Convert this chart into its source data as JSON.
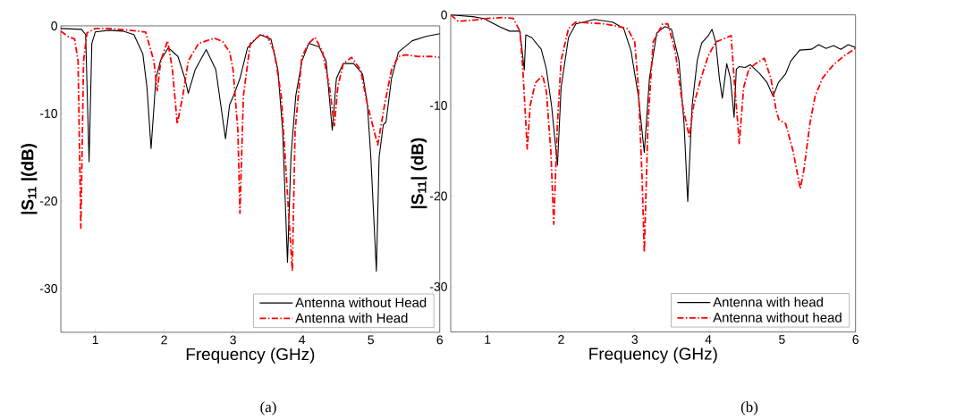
{
  "chart_data": [
    {
      "type": "line",
      "xlabel": "Frequency (GHz)",
      "ylabel": "|S$_{11}$ |(dB)",
      "annotations": [
        "(a)"
      ],
      "xlim": [
        0.5,
        6
      ],
      "ylim": [
        -35,
        0
      ],
      "xticks": [
        1,
        2,
        3,
        4,
        5,
        6
      ],
      "yticks": [
        0,
        -10,
        -20,
        -30
      ],
      "legend": "bottom right",
      "series": [
        {
          "name": "Antenna without Head",
          "color": "#000000",
          "line_style": "solid",
          "x": [
            0.5,
            0.8,
            0.86,
            0.91,
            0.95,
            1.0,
            1.2,
            1.4,
            1.56,
            1.69,
            1.75,
            1.81,
            1.88,
            1.95,
            2.06,
            2.2,
            2.3,
            2.35,
            2.45,
            2.61,
            2.75,
            2.89,
            2.95,
            3.02,
            3.1,
            3.21,
            3.39,
            3.55,
            3.65,
            3.72,
            3.79,
            3.84,
            3.91,
            4.0,
            4.1,
            4.25,
            4.35,
            4.44,
            4.5,
            4.6,
            4.75,
            4.88,
            4.95,
            5.0,
            5.08,
            5.12,
            5.18,
            5.22,
            5.3,
            5.4,
            5.6,
            5.8,
            6.0
          ],
          "values": [
            -0.3,
            -0.4,
            -1,
            -15.5,
            -2,
            -0.7,
            -0.5,
            -0.6,
            -1,
            -3.2,
            -7,
            -14,
            -6,
            -3.9,
            -2.5,
            -3.5,
            -6,
            -7.7,
            -5,
            -2.7,
            -5,
            -12.9,
            -9,
            -7.7,
            -6,
            -2.5,
            -1,
            -1.5,
            -5,
            -12,
            -27,
            -15,
            -8,
            -4,
            -2,
            -2.4,
            -4,
            -11.9,
            -6,
            -4.3,
            -4.3,
            -5.5,
            -9,
            -15,
            -28,
            -15,
            -11.3,
            -11,
            -6,
            -3,
            -1.7,
            -1.2,
            -0.9
          ]
        },
        {
          "name": "Antenna with Head",
          "color": "#ff0000",
          "line_style": "dashdot",
          "x": [
            0.5,
            0.6,
            0.7,
            0.75,
            0.79,
            0.83,
            0.88,
            1.0,
            1.2,
            1.5,
            1.73,
            1.85,
            1.9,
            1.95,
            2.05,
            2.12,
            2.19,
            2.27,
            2.35,
            2.5,
            2.73,
            2.85,
            2.95,
            3.0,
            3.07,
            3.1,
            3.15,
            3.25,
            3.4,
            3.5,
            3.6,
            3.7,
            3.78,
            3.86,
            3.9,
            4.0,
            4.1,
            4.19,
            4.3,
            4.4,
            4.47,
            4.52,
            4.6,
            4.72,
            4.85,
            4.95,
            5.1,
            5.2,
            5.3,
            5.4,
            5.5,
            5.7,
            5.9,
            6.0
          ],
          "values": [
            -0.6,
            -1.2,
            -1.5,
            -4,
            -23.1,
            -4,
            -0.8,
            -0.3,
            -0.3,
            -0.5,
            -0.7,
            -4,
            -7.4,
            -4,
            -1.7,
            -5,
            -11.2,
            -8,
            -4,
            -2,
            -1.4,
            -1.8,
            -3,
            -5,
            -12,
            -21.4,
            -8,
            -2,
            -1,
            -1.2,
            -3,
            -8,
            -18,
            -28,
            -12,
            -3.5,
            -2,
            -1.3,
            -3,
            -7,
            -11.4,
            -7,
            -4.3,
            -3.6,
            -5,
            -9,
            -13.6,
            -9,
            -5,
            -3.5,
            -3.3,
            -3.5,
            -3.5,
            -3.6
          ]
        }
      ]
    },
    {
      "type": "line",
      "xlabel": "Frequency (GHz)",
      "ylabel": "|S$_{11}$| (dB)",
      "annotations": [
        "(b)"
      ],
      "xlim": [
        0.5,
        6
      ],
      "ylim": [
        -35,
        0
      ],
      "xticks": [
        1,
        2,
        3,
        4,
        5,
        6
      ],
      "yticks": [
        0,
        -10,
        -20,
        -30
      ],
      "legend": "bottom right",
      "series": [
        {
          "name": "Antenna with head",
          "color": "#000000",
          "line_style": "solid",
          "x": [
            0.5,
            0.8,
            0.95,
            1.16,
            1.3,
            1.44,
            1.5,
            1.52,
            1.6,
            1.73,
            1.8,
            1.87,
            1.95,
            2.0,
            2.1,
            2.2,
            2.45,
            2.7,
            2.85,
            2.95,
            3.05,
            3.13,
            3.2,
            3.3,
            3.41,
            3.5,
            3.6,
            3.67,
            3.72,
            3.78,
            3.85,
            3.91,
            4.0,
            4.05,
            4.1,
            4.15,
            4.19,
            4.25,
            4.3,
            4.35,
            4.38,
            4.42,
            4.5,
            4.57,
            4.7,
            4.8,
            4.88,
            4.95,
            5.05,
            5.12,
            5.24,
            5.4,
            5.5,
            5.6,
            5.7,
            5.8,
            5.9,
            6.0
          ],
          "values": [
            0,
            -0.2,
            -0.4,
            -1.3,
            -1.8,
            -1.8,
            -6.1,
            -2.2,
            -2.5,
            -3.8,
            -6,
            -10,
            -16.6,
            -8,
            -2.5,
            -1,
            -0.5,
            -0.8,
            -1.5,
            -4,
            -9,
            -15.2,
            -7,
            -2,
            -1.3,
            -1.6,
            -5,
            -12,
            -20.6,
            -10,
            -5,
            -3.1,
            -2.3,
            -1.6,
            -3,
            -7,
            -9.2,
            -5.4,
            -7,
            -11.3,
            -6,
            -5.7,
            -5.8,
            -5.5,
            -6.5,
            -7.5,
            -9,
            -7.5,
            -6.5,
            -5.1,
            -3.9,
            -3.8,
            -3.3,
            -3.7,
            -3.4,
            -3.8,
            -3.3,
            -3.6
          ]
        },
        {
          "name": "Antenna without head",
          "color": "#ff0000",
          "line_style": "dashdot",
          "x": [
            0.5,
            0.6,
            0.8,
            1.0,
            1.2,
            1.35,
            1.44,
            1.48,
            1.54,
            1.58,
            1.65,
            1.75,
            1.8,
            1.86,
            1.9,
            1.95,
            2.0,
            2.1,
            2.2,
            2.6,
            2.9,
            3.0,
            3.05,
            3.1,
            3.13,
            3.18,
            3.25,
            3.38,
            3.45,
            3.55,
            3.65,
            3.74,
            3.8,
            3.9,
            4.0,
            4.1,
            4.31,
            4.35,
            4.4,
            4.42,
            4.48,
            4.55,
            4.64,
            4.76,
            4.85,
            4.92,
            4.96,
            5.05,
            5.15,
            5.25,
            5.3,
            5.38,
            5.45,
            5.55,
            5.7,
            5.85,
            6.0
          ],
          "values": [
            0,
            -0.7,
            -0.6,
            -0.4,
            -0.3,
            -0.4,
            -1.8,
            -6,
            -14.8,
            -10,
            -7.5,
            -6.7,
            -8.5,
            -15,
            -23.1,
            -12,
            -5,
            -1.5,
            -0.8,
            -1,
            -1.5,
            -3,
            -8,
            -18,
            -26.2,
            -12,
            -3,
            -1,
            -1,
            -4,
            -10,
            -13.4,
            -10,
            -7,
            -4.5,
            -3,
            -2.3,
            -7,
            -12,
            -14.2,
            -8,
            -6,
            -5.4,
            -4.8,
            -7,
            -10.5,
            -11.6,
            -12,
            -15,
            -19.2,
            -17,
            -12,
            -9,
            -7,
            -5.5,
            -4.5,
            -3.7
          ]
        }
      ]
    }
  ]
}
